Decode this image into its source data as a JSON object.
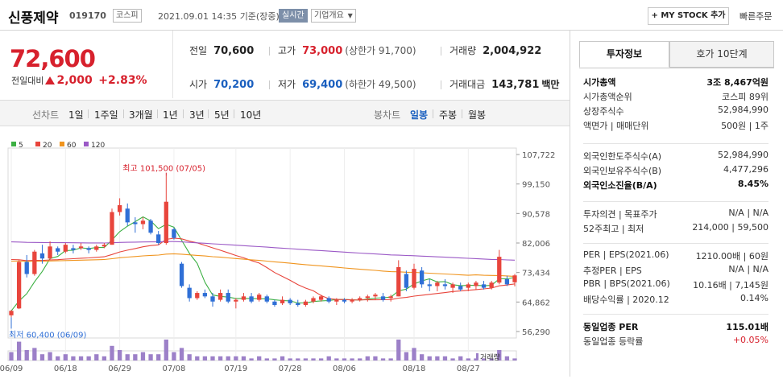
{
  "header": {
    "company": "신풍제약",
    "code": "019170",
    "market": "코스피",
    "datetime": "2021.09.01 14:35",
    "basis": "기준(장중)",
    "realtime": "실시간",
    "overview": "기업개요",
    "mystock": "+ MY STOCK 추가",
    "quick_order": "빠른주문"
  },
  "price": {
    "current": "72,600",
    "change_label": "전일대비",
    "change": "2,000",
    "change_pct": "+2.83%"
  },
  "quotes": {
    "prev_label": "전일",
    "prev": "70,600",
    "high_label": "고가",
    "high": "73,000",
    "upper_limit": "(상한가 91,700)",
    "volume_label": "거래량",
    "volume": "2,004,922",
    "open_label": "시가",
    "open": "70,200",
    "low_label": "저가",
    "low": "69,400",
    "lower_limit": "(하한가 49,500)",
    "amount_label": "거래대금",
    "amount": "143,781",
    "amount_unit": "백만"
  },
  "tabs": {
    "line_label": "선차트",
    "periods": [
      "1일",
      "1주일",
      "3개월",
      "1년",
      "3년",
      "5년",
      "10년"
    ],
    "candle_label": "봉차트",
    "candles": [
      "일봉",
      "주봉",
      "월봉"
    ],
    "active_candle": "일봉"
  },
  "chart_data": {
    "type": "candlestick",
    "legend": [
      "5",
      "20",
      "60",
      "120"
    ],
    "legend_colors": [
      "#3cb043",
      "#e8453c",
      "#f0941d",
      "#9b59c6"
    ],
    "y_ticks": [
      "107,722",
      "99,150",
      "90,578",
      "82,006",
      "73,434",
      "64,862",
      "56,290"
    ],
    "ylim": [
      56290,
      107722
    ],
    "x_ticks": [
      "06/09",
      "06/18",
      "06/29",
      "07/08",
      "07/19",
      "07/28",
      "08/06",
      "08/18",
      "08/27"
    ],
    "max_label": "최고 101,500 (07/05)",
    "min_label": "최저 60,400 (06/09)",
    "volume_label": "거래량",
    "candles": [
      [
        61000,
        62500,
        60400,
        62300
      ],
      [
        63000,
        77000,
        62800,
        76500
      ],
      [
        76500,
        78500,
        72000,
        73000
      ],
      [
        73000,
        80000,
        72500,
        79500
      ],
      [
        79000,
        81500,
        76000,
        77500
      ],
      [
        77500,
        82500,
        77000,
        81000
      ],
      [
        80500,
        81000,
        78500,
        79500
      ],
      [
        79500,
        82000,
        79000,
        81500
      ],
      [
        80500,
        81500,
        79000,
        80000
      ],
      [
        80500,
        82000,
        80000,
        81000
      ],
      [
        80500,
        81000,
        79000,
        80000
      ],
      [
        80000,
        81500,
        79500,
        81000
      ],
      [
        81000,
        82000,
        80500,
        81500
      ],
      [
        81500,
        92000,
        81500,
        91000
      ],
      [
        91000,
        95000,
        90000,
        93000
      ],
      [
        92000,
        93500,
        87000,
        88000
      ],
      [
        88000,
        89500,
        85000,
        87500
      ],
      [
        87500,
        89500,
        86000,
        88500
      ],
      [
        88500,
        89000,
        84500,
        85000
      ],
      [
        84500,
        85500,
        81500,
        82000
      ],
      [
        82000,
        101500,
        81500,
        94000
      ],
      [
        86000,
        86500,
        83000,
        83500
      ],
      [
        76000,
        76500,
        69000,
        69500
      ],
      [
        69000,
        70000,
        65000,
        66000
      ],
      [
        66000,
        68000,
        65500,
        67500
      ],
      [
        67500,
        68500,
        66000,
        66500
      ],
      [
        66500,
        67500,
        63500,
        65000
      ],
      [
        65500,
        68500,
        65000,
        67500
      ],
      [
        67500,
        68500,
        64500,
        65000
      ],
      [
        65000,
        66000,
        63000,
        65500
      ],
      [
        65500,
        67500,
        65000,
        66500
      ],
      [
        66500,
        67500,
        64500,
        65000
      ],
      [
        65500,
        67500,
        65000,
        67000
      ],
      [
        66500,
        67000,
        64500,
        65000
      ],
      [
        65000,
        65500,
        63500,
        64000
      ],
      [
        64500,
        66500,
        64000,
        65500
      ],
      [
        65500,
        66000,
        64000,
        64500
      ],
      [
        64500,
        65500,
        63500,
        64000
      ],
      [
        64000,
        65500,
        63500,
        65000
      ],
      [
        65000,
        66500,
        64500,
        66000
      ],
      [
        65500,
        67000,
        65000,
        66500
      ],
      [
        66000,
        66500,
        64500,
        65000
      ],
      [
        65000,
        66000,
        64000,
        65500
      ],
      [
        65500,
        66000,
        64500,
        65000
      ],
      [
        65000,
        66000,
        64500,
        65500
      ],
      [
        65500,
        66500,
        65000,
        66000
      ],
      [
        66000,
        67000,
        65000,
        66500
      ],
      [
        66500,
        67500,
        65500,
        67000
      ],
      [
        66500,
        67500,
        65000,
        65500
      ],
      [
        66000,
        67000,
        65000,
        66500
      ],
      [
        66500,
        77000,
        66500,
        75000
      ],
      [
        73000,
        74000,
        68000,
        69000
      ],
      [
        69000,
        76000,
        68500,
        74500
      ],
      [
        74000,
        75000,
        69000,
        70000
      ],
      [
        70000,
        71500,
        68000,
        69500
      ],
      [
        69500,
        71000,
        68000,
        70500
      ],
      [
        70000,
        71500,
        68500,
        69500
      ],
      [
        69000,
        70500,
        67500,
        70000
      ],
      [
        69500,
        70500,
        68000,
        68500
      ],
      [
        69000,
        70500,
        68000,
        70000
      ],
      [
        69500,
        71000,
        68500,
        70500
      ],
      [
        70000,
        71000,
        68500,
        69000
      ],
      [
        69000,
        71000,
        68500,
        70500
      ],
      [
        70500,
        80000,
        70000,
        78000
      ],
      [
        71500,
        72500,
        69500,
        70000
      ],
      [
        70600,
        73000,
        69400,
        72600
      ]
    ],
    "volumes": [
      4,
      9,
      5,
      6,
      3,
      4,
      2,
      3,
      2,
      2,
      2,
      3,
      2,
      7,
      5,
      3,
      3,
      4,
      3,
      3,
      10,
      4,
      6,
      3,
      2,
      2,
      2,
      2,
      2,
      2,
      2,
      1,
      2,
      1,
      1,
      2,
      1,
      1,
      1,
      1,
      1,
      2,
      1,
      1,
      1,
      1,
      2,
      2,
      1,
      1,
      10,
      4,
      6,
      3,
      2,
      2,
      2,
      1,
      2,
      1,
      1,
      1,
      1,
      5,
      2,
      1
    ]
  },
  "invest": {
    "tab_active": "투자정보",
    "tab_other": "호가 10단계",
    "rows1": [
      {
        "k": "시가총액",
        "v": "3조 8,467억원",
        "bold": true
      },
      {
        "k": "시가총액순위",
        "v": "코스피 89위"
      },
      {
        "k": "상장주식수",
        "v": "52,984,990"
      },
      {
        "k": "액면가 | 매매단위",
        "v": "500원 | 1주"
      }
    ],
    "rows2": [
      {
        "k": "외국인한도주식수(A)",
        "v": "52,984,990"
      },
      {
        "k": "외국인보유주식수(B)",
        "v": "4,477,296"
      },
      {
        "k": "외국인소진율(B/A)",
        "v": "8.45%",
        "bold": true
      }
    ],
    "rows3": [
      {
        "k": "투자의견 | 목표주가",
        "v": "N/A | N/A"
      },
      {
        "k": "52주최고 | 최저",
        "v": "214,000 | 59,500"
      }
    ],
    "rows4": [
      {
        "k": "PER | EPS(2021.06)",
        "v": "1210.00배 | 60원"
      },
      {
        "k": "추정PER | EPS",
        "v": "N/A | N/A"
      },
      {
        "k": "PBR | BPS(2021.06)",
        "v": "10.16배 | 7,145원"
      },
      {
        "k": "배당수익률 | 2020.12",
        "v": "0.14%"
      }
    ],
    "rows5": [
      {
        "k": "동일업종 PER",
        "v": "115.01배",
        "bold": true
      },
      {
        "k": "동일업종 등락률",
        "v": "+0.05%",
        "red": true
      }
    ]
  }
}
